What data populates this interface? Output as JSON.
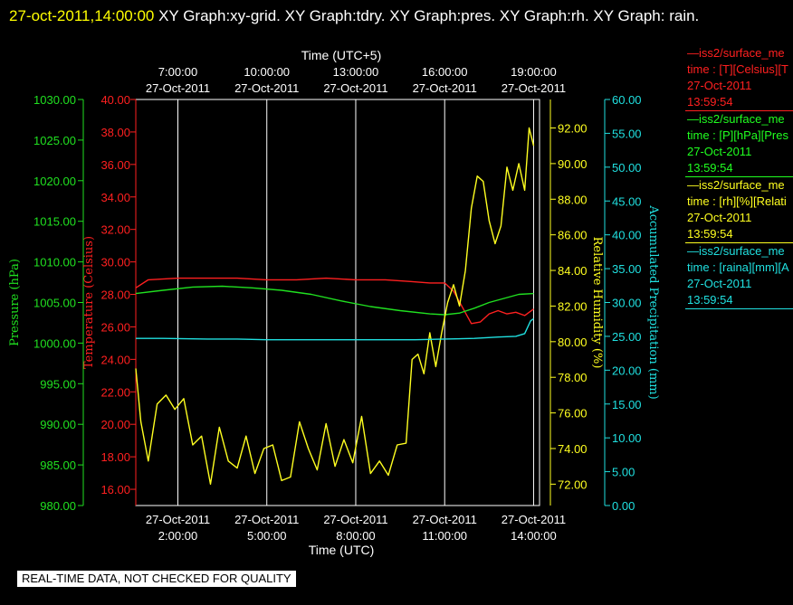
{
  "title": {
    "timestamp": "27-oct-2011,14:00:00",
    "text": " XY Graph:xy-grid.  XY Graph:tdry.  XY Graph:pres.  XY Graph:rh.  XY Graph: rain."
  },
  "disclaimer": "REAL-TIME DATA, NOT CHECKED FOR QUALITY",
  "legend": [
    {
      "name": "iss2/surface_me",
      "line1": "time : [T][Celsius][T",
      "date": "27-Oct-2011",
      "time": "13:59:54",
      "color": "#ff2020"
    },
    {
      "name": "iss2/surface_me",
      "line1": "time : [P][hPa][Pres",
      "date": "27-Oct-2011",
      "time": "13:59:54",
      "color": "#20ff20"
    },
    {
      "name": "iss2/surface_me",
      "line1": "time : [rh][%][Relati",
      "date": "27-Oct-2011",
      "time": "13:59:54",
      "color": "#ffff20"
    },
    {
      "name": "iss2/surface_me",
      "line1": "time : [raina][mm][A",
      "date": "27-Oct-2011",
      "time": "13:59:54",
      "color": "#20e0e0"
    }
  ],
  "chart_data": {
    "type": "line",
    "x_label": "Time (UTC)",
    "x_top_label": "Time (UTC+5)",
    "x_range": [
      "2011-10-27 00:35",
      "2011-10-27 14:00"
    ],
    "x_ticks_bottom": [
      {
        "date": "27-Oct-2011",
        "time": "2:00:00",
        "t": 2
      },
      {
        "date": "27-Oct-2011",
        "time": "5:00:00",
        "t": 5
      },
      {
        "date": "27-Oct-2011",
        "time": "8:00:00",
        "t": 8
      },
      {
        "date": "27-Oct-2011",
        "time": "11:00:00",
        "t": 11
      },
      {
        "date": "27-Oct-2011",
        "time": "14:00:00",
        "t": 14
      }
    ],
    "x_ticks_top": [
      {
        "time": "7:00:00",
        "date": "27-Oct-2011",
        "t": 2
      },
      {
        "time": "10:00:00",
        "date": "27-Oct-2011",
        "t": 5
      },
      {
        "time": "13:00:00",
        "date": "27-Oct-2011",
        "t": 8
      },
      {
        "time": "16:00:00",
        "date": "27-Oct-2011",
        "t": 11
      },
      {
        "time": "19:00:00",
        "date": "27-Oct-2011",
        "t": 14
      }
    ],
    "x_min": 0.58,
    "x_max": 14.2,
    "axes": {
      "pressure": {
        "label": "Pressure (hPa)",
        "min": 980,
        "max": 1030,
        "ticks": [
          "980.00",
          "985.00",
          "990.00",
          "995.00",
          "1000.00",
          "1005.00",
          "1010.00",
          "1015.00",
          "1020.00",
          "1025.00",
          "1030.00"
        ],
        "color": "#20e020"
      },
      "temperature": {
        "label": "Temperature (Celsius)",
        "min": 15,
        "max": 40,
        "ticks": [
          "16.00",
          "18.00",
          "20.00",
          "22.00",
          "24.00",
          "26.00",
          "28.00",
          "30.00",
          "32.00",
          "34.00",
          "36.00",
          "38.00",
          "40.00"
        ],
        "color": "#ff2020"
      },
      "rh": {
        "label": "Relative Humidity (%)",
        "min": 70.8,
        "max": 93.6,
        "ticks": [
          "72.00",
          "74.00",
          "76.00",
          "78.00",
          "80.00",
          "82.00",
          "84.00",
          "86.00",
          "88.00",
          "90.00",
          "92.00"
        ],
        "color": "#ffff20"
      },
      "precip": {
        "label": "Accumulated Precipitation (mm)",
        "min": 0,
        "max": 60,
        "ticks": [
          "0.00",
          "5.00",
          "10.00",
          "15.00",
          "20.00",
          "25.00",
          "30.00",
          "35.00",
          "40.00",
          "45.00",
          "50.00",
          "55.00",
          "60.00"
        ],
        "color": "#20e0e0"
      }
    },
    "series": [
      {
        "name": "T",
        "axis": "temperature",
        "color": "#ff2020",
        "x": [
          0.58,
          1.0,
          2.0,
          3.0,
          4.0,
          5.0,
          6.0,
          7.0,
          8.0,
          9.0,
          9.8,
          10.5,
          11.0,
          11.3,
          11.6,
          11.9,
          12.2,
          12.5,
          12.8,
          13.1,
          13.4,
          13.7,
          14.0
        ],
        "y": [
          28.4,
          28.9,
          29.0,
          29.0,
          29.0,
          28.9,
          28.9,
          29.0,
          28.9,
          28.9,
          28.8,
          28.7,
          28.7,
          28.2,
          27.2,
          26.2,
          26.3,
          26.8,
          27.0,
          26.8,
          26.9,
          26.7,
          27.1
        ]
      },
      {
        "name": "P",
        "axis": "pressure",
        "color": "#20e020",
        "x": [
          0.58,
          1.5,
          2.5,
          3.5,
          4.5,
          5.5,
          6.5,
          7.5,
          8.5,
          9.5,
          10.5,
          11.0,
          11.5,
          12.0,
          12.5,
          13.0,
          13.5,
          14.0
        ],
        "y": [
          1006.1,
          1006.5,
          1006.9,
          1007.0,
          1006.8,
          1006.5,
          1006.0,
          1005.2,
          1004.5,
          1004.0,
          1003.6,
          1003.5,
          1003.7,
          1004.3,
          1005.0,
          1005.5,
          1006.0,
          1006.1
        ]
      },
      {
        "name": "rh",
        "axis": "rh",
        "color": "#ffff20",
        "x": [
          0.58,
          0.75,
          1.0,
          1.3,
          1.6,
          1.9,
          2.2,
          2.5,
          2.8,
          3.1,
          3.4,
          3.7,
          4.0,
          4.3,
          4.6,
          4.9,
          5.2,
          5.5,
          5.8,
          6.1,
          6.4,
          6.7,
          7.0,
          7.3,
          7.6,
          7.9,
          8.2,
          8.5,
          8.8,
          9.1,
          9.4,
          9.7,
          9.9,
          10.1,
          10.3,
          10.5,
          10.7,
          10.9,
          11.1,
          11.3,
          11.5,
          11.7,
          11.9,
          12.1,
          12.3,
          12.5,
          12.7,
          12.9,
          13.1,
          13.3,
          13.5,
          13.7,
          13.85,
          14.0
        ],
        "y": [
          78.5,
          75.5,
          73.3,
          76.5,
          77.0,
          76.2,
          76.8,
          74.2,
          74.7,
          72.0,
          75.2,
          73.3,
          72.9,
          74.7,
          72.6,
          74.0,
          74.2,
          72.2,
          72.4,
          75.5,
          74.0,
          72.8,
          75.4,
          73.0,
          74.5,
          73.2,
          75.8,
          72.6,
          73.3,
          72.5,
          74.2,
          74.3,
          79.0,
          79.3,
          78.2,
          80.5,
          78.6,
          80.5,
          82.2,
          83.2,
          82.0,
          84.0,
          87.5,
          89.3,
          89.0,
          86.8,
          85.5,
          86.5,
          89.8,
          88.5,
          90.0,
          88.5,
          92.0,
          91.0
        ]
      },
      {
        "name": "raina",
        "axis": "precip",
        "color": "#20e0e0",
        "x": [
          0.58,
          1.5,
          3.0,
          4.0,
          5.0,
          6.0,
          7.0,
          8.0,
          9.0,
          10.0,
          11.0,
          12.0,
          12.8,
          13.4,
          13.7,
          13.9,
          14.0
        ],
        "y": [
          24.7,
          24.7,
          24.6,
          24.6,
          24.5,
          24.5,
          24.5,
          24.5,
          24.5,
          24.5,
          24.6,
          24.7,
          24.9,
          25.0,
          25.4,
          27.3,
          27.6
        ]
      }
    ]
  }
}
